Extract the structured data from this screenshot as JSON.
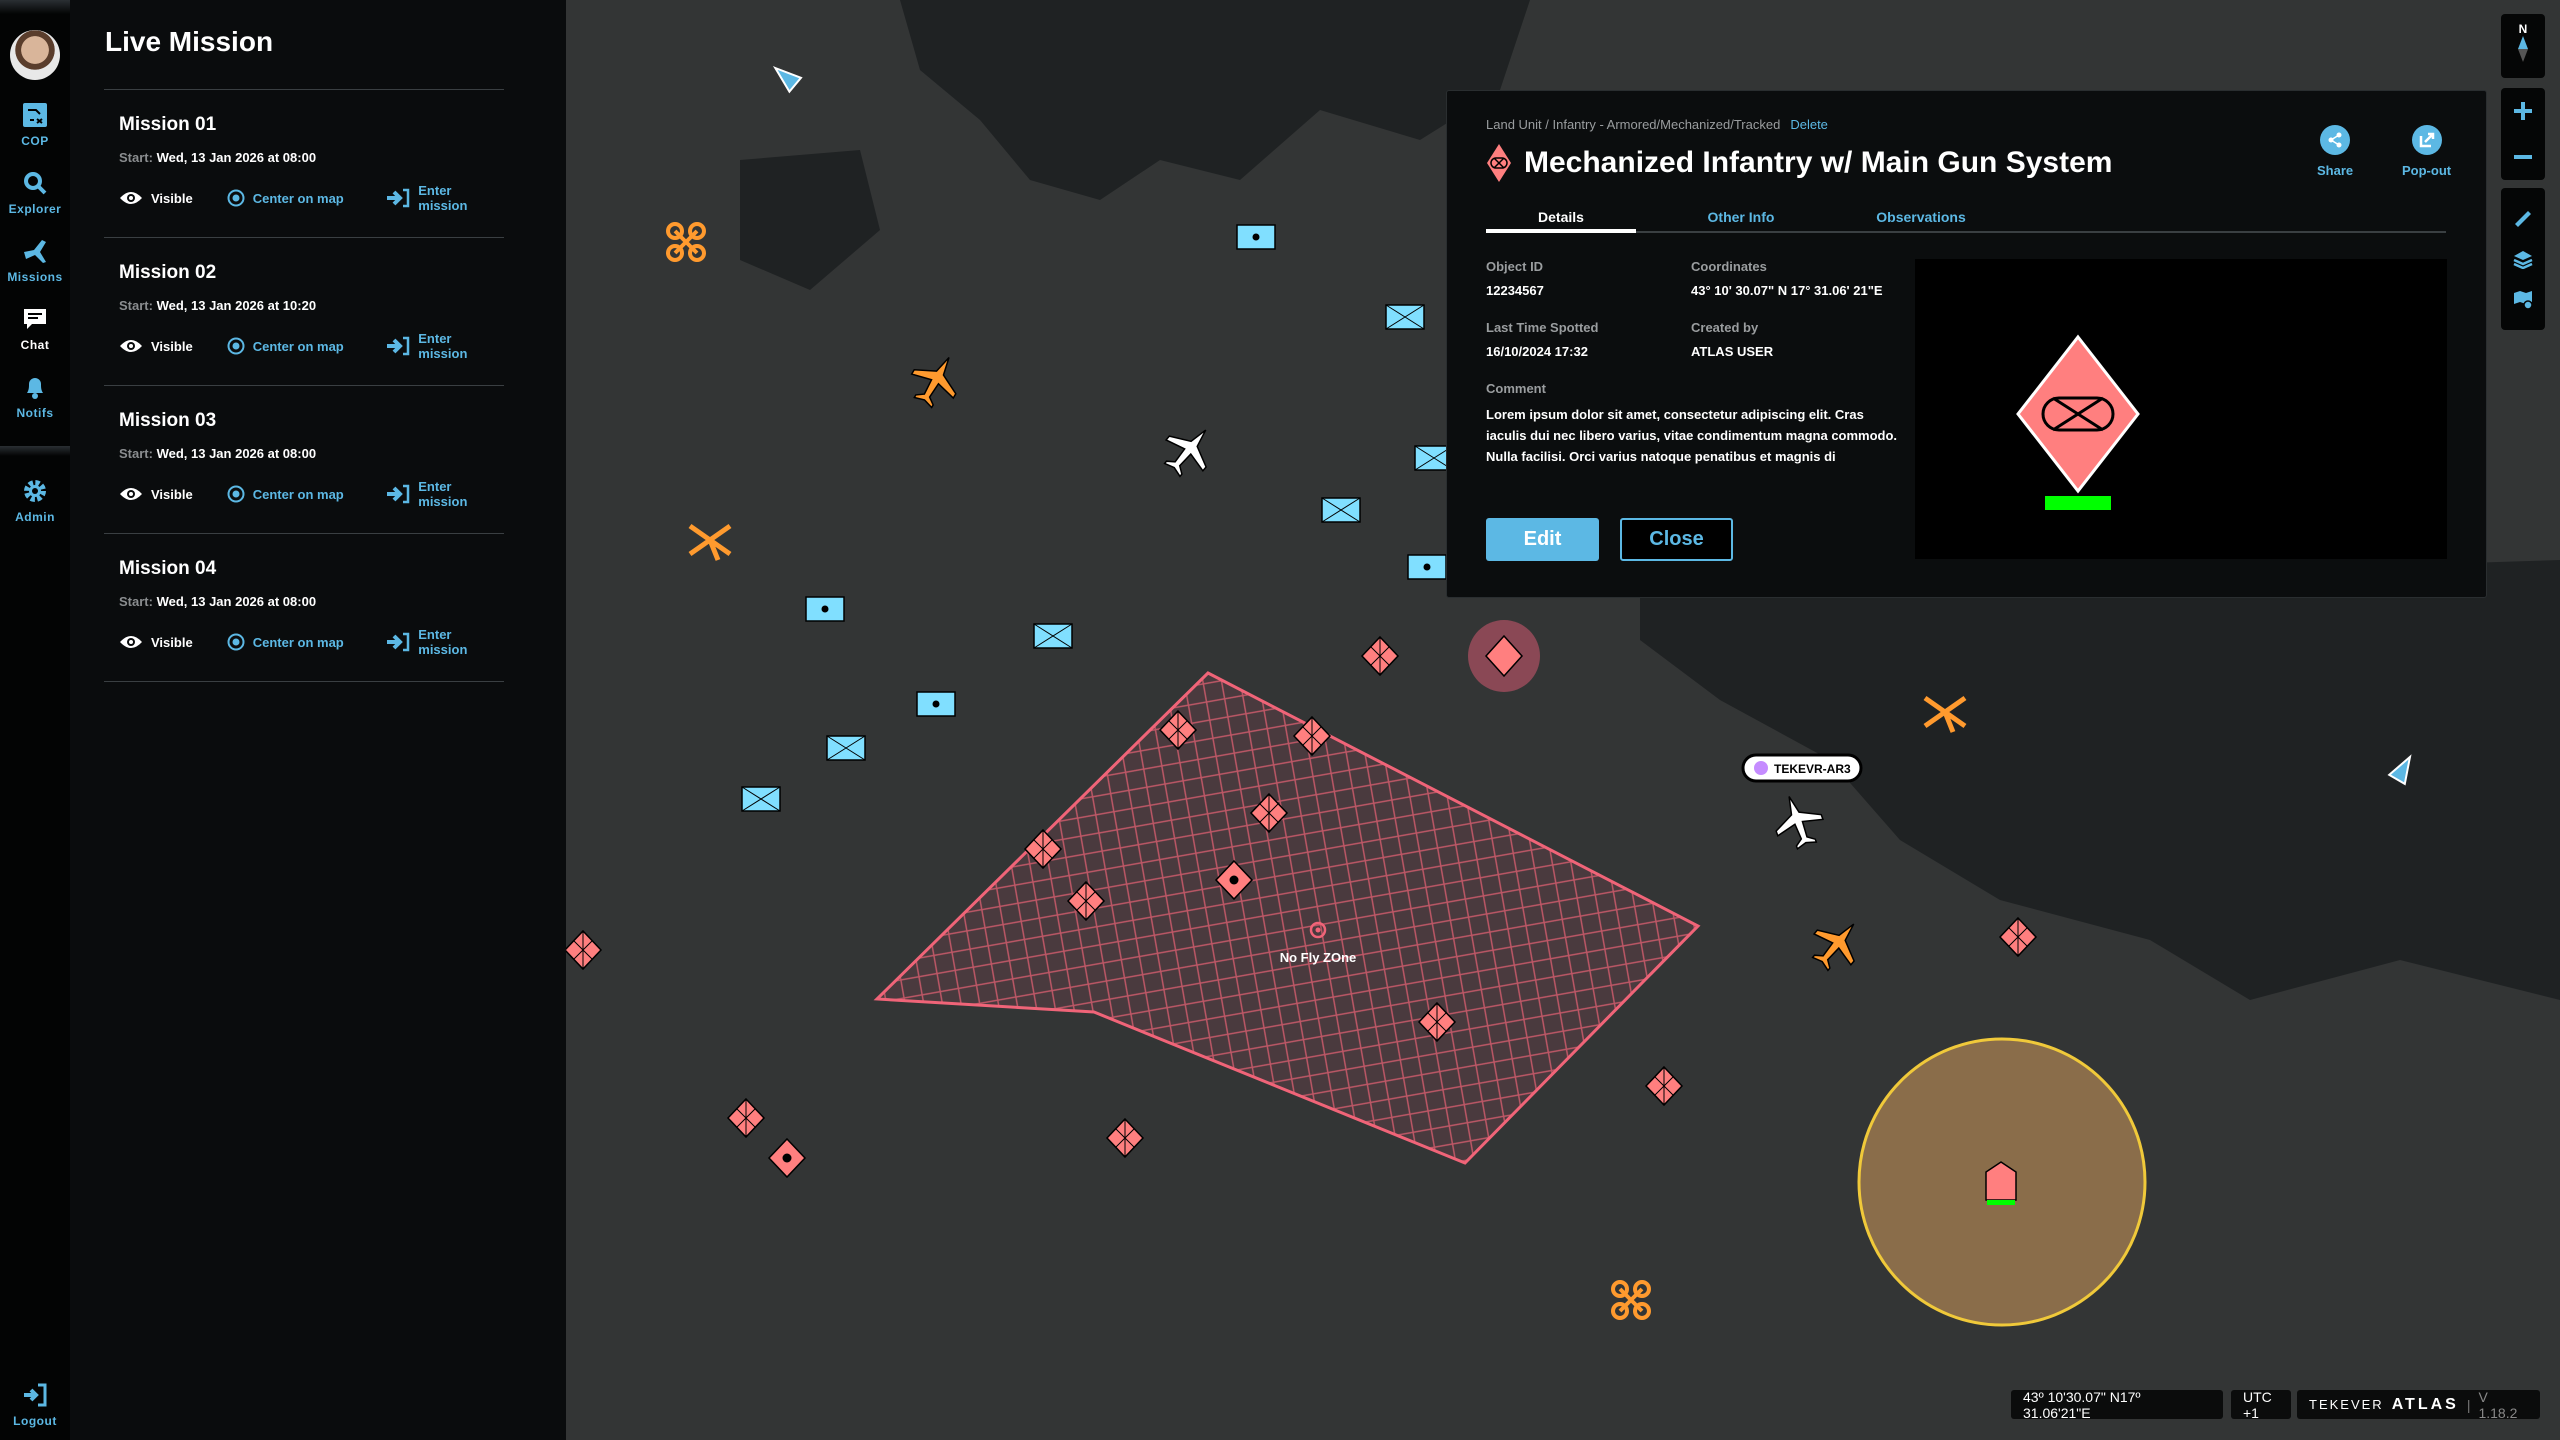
{
  "nav": {
    "items": [
      {
        "label": "COP",
        "icon": "cop-icon"
      },
      {
        "label": "Explorer",
        "icon": "search-icon"
      },
      {
        "label": "Missions",
        "icon": "plane-icon"
      },
      {
        "label": "Chat",
        "icon": "chat-icon"
      },
      {
        "label": "Notifs",
        "icon": "bell-icon"
      }
    ],
    "admin": "Admin",
    "logout": "Logout"
  },
  "panel": {
    "title": "Live Mission",
    "start_label": "Start:",
    "visible_label": "Visible",
    "center_label": "Center on map",
    "enter_label": "Enter mission",
    "missions": [
      {
        "name": "Mission 01",
        "start": "Wed, 13 Jan 2026 at 08:00"
      },
      {
        "name": "Mission 02",
        "start": "Wed, 13 Jan 2026 at 10:20"
      },
      {
        "name": "Mission 03",
        "start": "Wed, 13 Jan 2026 at 08:00"
      },
      {
        "name": "Mission 04",
        "start": "Wed, 13 Jan 2026 at 08:00"
      }
    ]
  },
  "detail": {
    "breadcrumb": "Land Unit / Infantry - Armored/Mechanized/Tracked",
    "delete": "Delete",
    "title": "Mechanized Infantry w/ Main Gun System",
    "share": "Share",
    "popout": "Pop-out",
    "tabs": [
      "Details",
      "Other Info",
      "Observations"
    ],
    "object_id_label": "Object ID",
    "object_id": "12234567",
    "coordinates_label": "Coordinates",
    "coordinates": "43° 10' 30.07\" N 17° 31.06' 21\"E",
    "last_spotted_label": "Last Time Spotted",
    "last_spotted": "16/10/2024 17:32",
    "created_by_label": "Created by",
    "created_by": "ATLAS USER",
    "comment_label": "Comment",
    "comment": "Lorem ipsum dolor sit amet, consectetur adipiscing elit. Cras iaculis dui nec libero varius, vitae condimentum magna commodo. Nulla facilisi. Orci varius natoque penatibus et magnis di",
    "edit": "Edit",
    "close": "Close"
  },
  "map": {
    "zone_label": "No Fly ZOne",
    "track_label": "TEKEVR-AR3",
    "compass": "N",
    "colors": {
      "hostile": "#ff7f7f",
      "friendly": "#80dfff",
      "neutral_air": "#ff9a2e",
      "zone": "#f06478",
      "range_fill": "#8a6d4a",
      "range_stroke": "#f0c93a",
      "accent": "#5cb8e4",
      "track_dot": "#c58cff"
    }
  },
  "status": {
    "coords": "43º 10'30.07\" N17º 31.06'21\"E",
    "tz": "UTC +1",
    "brand": "TEKEVER",
    "product": "ATLAS",
    "version": "V 1.18.2"
  }
}
